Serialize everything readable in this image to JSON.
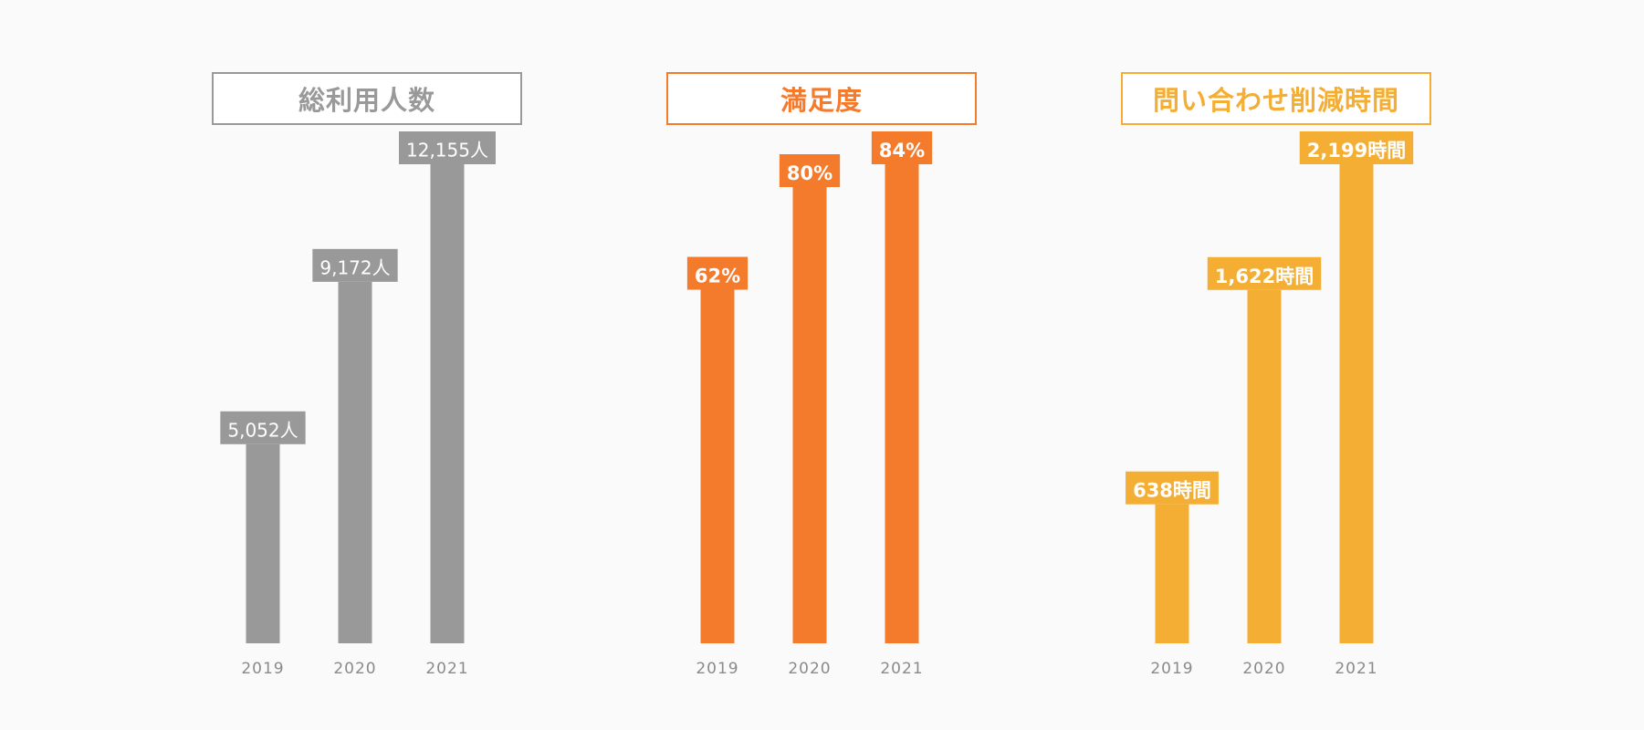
{
  "chart_data": [
    {
      "type": "bar",
      "title": "総利用人数",
      "color": "#999999",
      "label_style": "regular",
      "categories": [
        "2019",
        "2020",
        "2021"
      ],
      "values": [
        5052,
        9172,
        12155
      ],
      "value_labels": [
        "5,052人",
        "9,172人",
        "12,155人"
      ]
    },
    {
      "type": "bar",
      "title": "満足度",
      "color": "#f47a2c",
      "label_style": "bold",
      "categories": [
        "2019",
        "2020",
        "2021"
      ],
      "values": [
        62,
        80,
        84
      ],
      "value_labels": [
        "62%",
        "80%",
        "84%"
      ]
    },
    {
      "type": "bar",
      "title": "問い合わせ削減時間",
      "color": "#f4ae33",
      "label_style": "bold",
      "categories": [
        "2019",
        "2020",
        "2021"
      ],
      "values": [
        638,
        1622,
        2199
      ],
      "value_labels": [
        "638時間",
        "1,622時間",
        "2,199時間"
      ]
    }
  ]
}
